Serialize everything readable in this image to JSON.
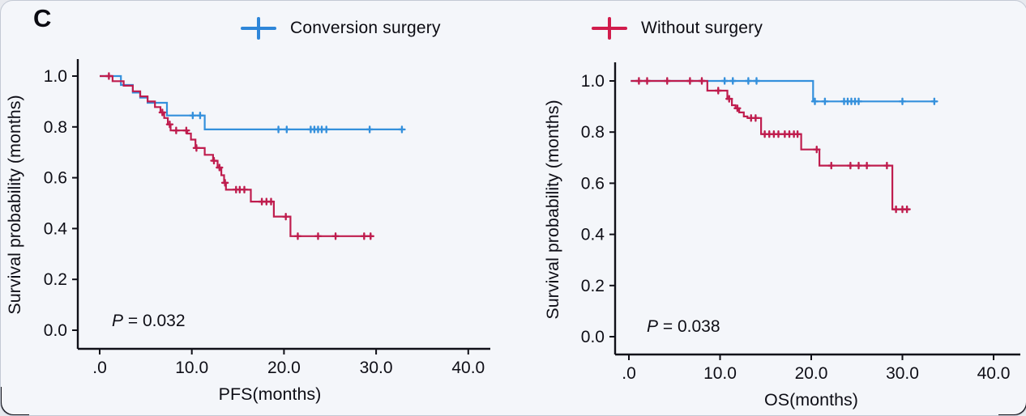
{
  "panel_label": "C",
  "legend": [
    {
      "label": "Conversion surgery",
      "color": "#2e86d9"
    },
    {
      "label": "Without surgery",
      "color": "#d11c4c"
    }
  ],
  "chart_data": [
    {
      "type": "line",
      "subtype": "kaplan-meier-step",
      "xlabel": "PFS(months)",
      "ylabel": "Survival probability (months)",
      "p_italic": "P",
      "p_rest": " = 0.032",
      "x_tick_labels": [
        ".0",
        "10.0",
        "20.0",
        "30.0",
        "40.0"
      ],
      "x_tick_values": [
        0,
        10,
        20,
        30,
        40
      ],
      "y_tick_labels": [
        "1.0",
        "0.8",
        "0.6",
        "0.4",
        "0.2",
        "0.0"
      ],
      "y_tick_values": [
        1.0,
        0.8,
        0.6,
        0.4,
        0.2,
        0.0
      ],
      "xlim": [
        0,
        42
      ],
      "ylim": [
        0,
        1.0
      ],
      "grid": false,
      "legend_position": "top",
      "series": [
        {
          "name": "Conversion surgery",
          "color": "#3490dc",
          "steps": [
            [
              0,
              1.0
            ],
            [
              2.3,
              1.0
            ],
            [
              2.3,
              0.965
            ],
            [
              3.6,
              0.965
            ],
            [
              3.6,
              0.935
            ],
            [
              4.4,
              0.935
            ],
            [
              4.4,
              0.915
            ],
            [
              5.2,
              0.915
            ],
            [
              5.2,
              0.895
            ],
            [
              7.3,
              0.895
            ],
            [
              7.3,
              0.845
            ],
            [
              11.4,
              0.845
            ],
            [
              11.4,
              0.79
            ],
            [
              32.8,
              0.79
            ]
          ],
          "censors": [
            [
              10.1,
              0.845
            ],
            [
              10.9,
              0.845
            ],
            [
              19.4,
              0.79
            ],
            [
              20.3,
              0.79
            ],
            [
              22.9,
              0.79
            ],
            [
              23.3,
              0.79
            ],
            [
              23.7,
              0.79
            ],
            [
              24.1,
              0.79
            ],
            [
              24.6,
              0.79
            ],
            [
              29.3,
              0.79
            ],
            [
              32.8,
              0.79
            ]
          ]
        },
        {
          "name": "Without surgery",
          "color": "#bf1d4e",
          "steps": [
            [
              0,
              1.0
            ],
            [
              1.4,
              1.0
            ],
            [
              1.4,
              0.98
            ],
            [
              2.6,
              0.98
            ],
            [
              2.6,
              0.962
            ],
            [
              3.6,
              0.962
            ],
            [
              3.6,
              0.94
            ],
            [
              4.4,
              0.94
            ],
            [
              4.4,
              0.92
            ],
            [
              5.2,
              0.92
            ],
            [
              5.2,
              0.9
            ],
            [
              6.0,
              0.9
            ],
            [
              6.0,
              0.878
            ],
            [
              6.6,
              0.878
            ],
            [
              6.6,
              0.857
            ],
            [
              7.0,
              0.857
            ],
            [
              7.0,
              0.835
            ],
            [
              7.4,
              0.835
            ],
            [
              7.4,
              0.81
            ],
            [
              7.7,
              0.81
            ],
            [
              7.7,
              0.786
            ],
            [
              9.5,
              0.786
            ],
            [
              9.5,
              0.774
            ],
            [
              9.9,
              0.774
            ],
            [
              9.9,
              0.75
            ],
            [
              10.4,
              0.75
            ],
            [
              10.4,
              0.717
            ],
            [
              11.4,
              0.717
            ],
            [
              11.4,
              0.69
            ],
            [
              12.3,
              0.69
            ],
            [
              12.3,
              0.667
            ],
            [
              12.8,
              0.667
            ],
            [
              12.8,
              0.64
            ],
            [
              13.2,
              0.64
            ],
            [
              13.2,
              0.61
            ],
            [
              13.5,
              0.61
            ],
            [
              13.5,
              0.58
            ],
            [
              13.7,
              0.58
            ],
            [
              13.7,
              0.553
            ],
            [
              16.4,
              0.553
            ],
            [
              16.4,
              0.506
            ],
            [
              18.9,
              0.506
            ],
            [
              18.9,
              0.447
            ],
            [
              20.7,
              0.447
            ],
            [
              20.7,
              0.37
            ],
            [
              29.6,
              0.37
            ]
          ],
          "censors": [
            [
              1.0,
              1.0
            ],
            [
              6.8,
              0.857
            ],
            [
              7.6,
              0.81
            ],
            [
              8.3,
              0.786
            ],
            [
              9.4,
              0.786
            ],
            [
              10.5,
              0.717
            ],
            [
              12.4,
              0.667
            ],
            [
              13.0,
              0.64
            ],
            [
              13.6,
              0.58
            ],
            [
              14.8,
              0.553
            ],
            [
              15.2,
              0.553
            ],
            [
              15.7,
              0.553
            ],
            [
              17.6,
              0.506
            ],
            [
              18.1,
              0.506
            ],
            [
              18.6,
              0.506
            ],
            [
              20.2,
              0.447
            ],
            [
              21.5,
              0.37
            ],
            [
              23.7,
              0.37
            ],
            [
              25.6,
              0.37
            ],
            [
              28.7,
              0.37
            ],
            [
              29.4,
              0.37
            ]
          ]
        }
      ]
    },
    {
      "type": "line",
      "subtype": "kaplan-meier-step",
      "xlabel": "OS(months)",
      "ylabel": "Survival probability (months)",
      "p_italic": "P",
      "p_rest": " = 0.038",
      "x_tick_labels": [
        ".0",
        "10.0",
        "20.0",
        "30.0",
        "40.0"
      ],
      "x_tick_values": [
        0,
        10,
        20,
        30,
        40
      ],
      "y_tick_labels": [
        "1.0",
        "0.8",
        "0.6",
        "0.4",
        "0.2",
        "0.0"
      ],
      "y_tick_values": [
        1.0,
        0.8,
        0.6,
        0.4,
        0.2,
        0.0
      ],
      "xlim": [
        0,
        42
      ],
      "ylim": [
        0,
        1.0
      ],
      "grid": false,
      "legend_position": "top",
      "series": [
        {
          "name": "Conversion surgery",
          "color": "#3490dc",
          "steps": [
            [
              0.2,
              1.0
            ],
            [
              20.2,
              1.0
            ],
            [
              20.2,
              0.92
            ],
            [
              33.5,
              0.92
            ]
          ],
          "censors": [
            [
              10.5,
              1.0
            ],
            [
              11.4,
              1.0
            ],
            [
              13.1,
              1.0
            ],
            [
              14.0,
              1.0
            ],
            [
              20.4,
              0.92
            ],
            [
              21.5,
              0.92
            ],
            [
              23.6,
              0.92
            ],
            [
              24.0,
              0.92
            ],
            [
              24.4,
              0.92
            ],
            [
              24.8,
              0.92
            ],
            [
              25.2,
              0.92
            ],
            [
              30.0,
              0.92
            ],
            [
              33.5,
              0.92
            ]
          ]
        },
        {
          "name": "Without surgery",
          "color": "#bf1d4e",
          "steps": [
            [
              0.2,
              1.0
            ],
            [
              8.6,
              1.0
            ],
            [
              8.6,
              0.962
            ],
            [
              10.8,
              0.962
            ],
            [
              10.8,
              0.93
            ],
            [
              11.3,
              0.93
            ],
            [
              11.3,
              0.905
            ],
            [
              11.7,
              0.905
            ],
            [
              11.7,
              0.893
            ],
            [
              12.1,
              0.893
            ],
            [
              12.1,
              0.877
            ],
            [
              12.6,
              0.877
            ],
            [
              12.6,
              0.861
            ],
            [
              13.0,
              0.861
            ],
            [
              13.0,
              0.855
            ],
            [
              14.5,
              0.855
            ],
            [
              14.5,
              0.792
            ],
            [
              18.9,
              0.792
            ],
            [
              18.9,
              0.732
            ],
            [
              20.9,
              0.732
            ],
            [
              20.9,
              0.669
            ],
            [
              28.9,
              0.669
            ],
            [
              28.9,
              0.498
            ],
            [
              30.8,
              0.498
            ]
          ],
          "censors": [
            [
              1.1,
              1.0
            ],
            [
              2.0,
              1.0
            ],
            [
              4.2,
              1.0
            ],
            [
              6.7,
              1.0
            ],
            [
              8.0,
              1.0
            ],
            [
              9.8,
              0.962
            ],
            [
              11.0,
              0.93
            ],
            [
              11.9,
              0.893
            ],
            [
              13.4,
              0.855
            ],
            [
              13.9,
              0.855
            ],
            [
              14.9,
              0.792
            ],
            [
              15.4,
              0.792
            ],
            [
              15.9,
              0.792
            ],
            [
              16.4,
              0.792
            ],
            [
              17.1,
              0.792
            ],
            [
              17.6,
              0.792
            ],
            [
              18.1,
              0.792
            ],
            [
              18.5,
              0.792
            ],
            [
              20.6,
              0.732
            ],
            [
              22.2,
              0.669
            ],
            [
              24.3,
              0.669
            ],
            [
              25.2,
              0.669
            ],
            [
              26.1,
              0.669
            ],
            [
              28.3,
              0.669
            ],
            [
              29.3,
              0.498
            ],
            [
              30.0,
              0.498
            ],
            [
              30.5,
              0.498
            ]
          ]
        }
      ]
    }
  ]
}
